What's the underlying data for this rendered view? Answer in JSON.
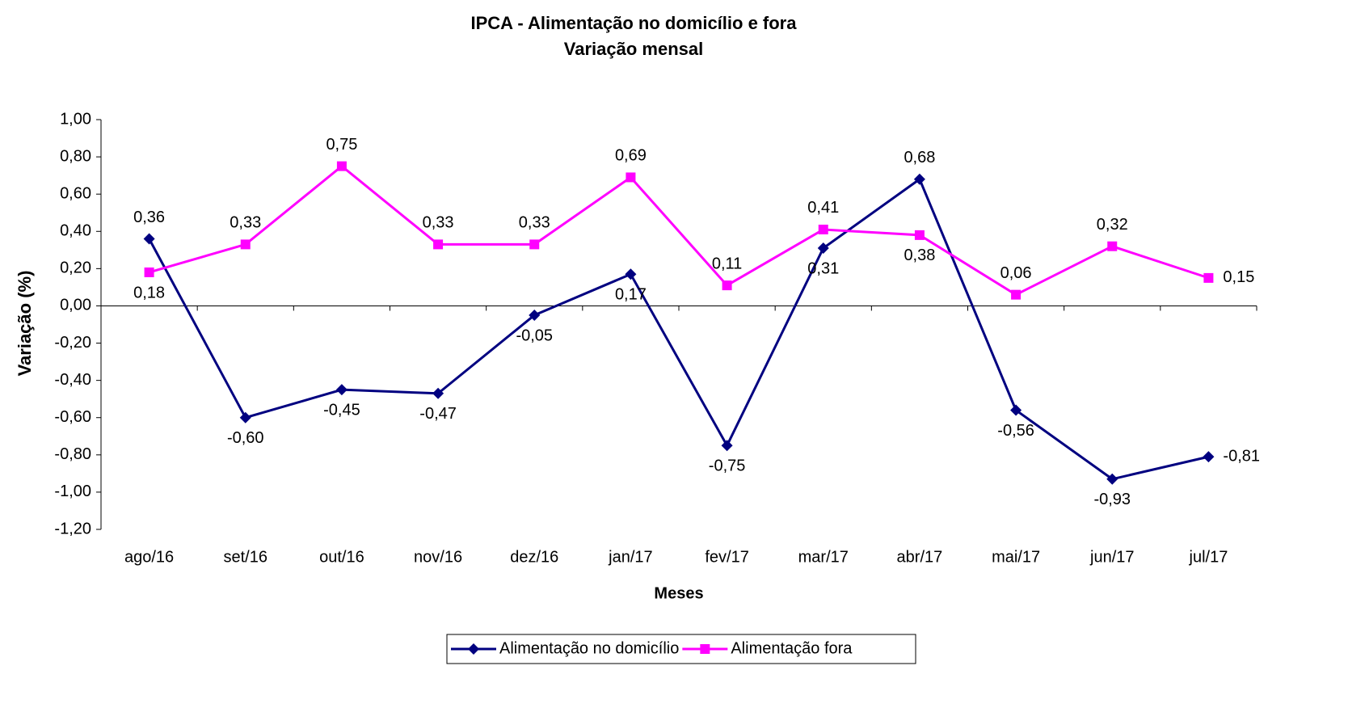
{
  "chart_data": {
    "type": "line",
    "title": "IPCA - Alimentação no domicílio e fora",
    "subtitle": "Variação mensal",
    "x_label": "Meses",
    "y_label": "Variação (%)",
    "categories": [
      "ago/16",
      "set/16",
      "out/16",
      "nov/16",
      "dez/16",
      "jan/17",
      "fev/17",
      "mar/17",
      "abr/17",
      "mai/17",
      "jun/17",
      "jul/17"
    ],
    "series": [
      {
        "name": "Alimentação no domicílio",
        "color": "#000080",
        "marker": "diamond",
        "values": [
          0.36,
          -0.6,
          -0.45,
          -0.47,
          -0.05,
          0.17,
          -0.75,
          0.31,
          0.68,
          -0.56,
          -0.93,
          -0.81
        ],
        "value_labels": [
          "0,36",
          "-0,60",
          "-0,45",
          "-0,47",
          "-0,05",
          "0,17",
          "-0,75",
          "0,31",
          "0,68",
          "-0,56",
          "-0,93",
          "-0,81"
        ]
      },
      {
        "name": "Alimentação fora",
        "color": "#FF00FF",
        "marker": "square",
        "values": [
          0.18,
          0.33,
          0.75,
          0.33,
          0.33,
          0.69,
          0.11,
          0.41,
          0.38,
          0.06,
          0.32,
          0.15
        ],
        "value_labels": [
          "0,18",
          "0,33",
          "0,75",
          "0,33",
          "0,33",
          "0,69",
          "0,11",
          "0,41",
          "0,38",
          "0,06",
          "0,32",
          "0,15"
        ]
      }
    ],
    "ylim": [
      -1.2,
      1.0
    ],
    "yticks": [
      {
        "value": -1.2,
        "label": "-1,20"
      },
      {
        "value": -1.0,
        "label": "-1,00"
      },
      {
        "value": -0.8,
        "label": "-0,80"
      },
      {
        "value": -0.6,
        "label": "-0,60"
      },
      {
        "value": -0.4,
        "label": "-0,40"
      },
      {
        "value": -0.2,
        "label": "-0,20"
      },
      {
        "value": 0,
        "label": "0,00"
      },
      {
        "value": 0.2,
        "label": "0,20"
      },
      {
        "value": 0.4,
        "label": "0,40"
      },
      {
        "value": 0.6,
        "label": "0,60"
      },
      {
        "value": 0.8,
        "label": "0,80"
      },
      {
        "value": 1.0,
        "label": "1,00"
      }
    ],
    "grid": false,
    "legend": "bottom"
  }
}
